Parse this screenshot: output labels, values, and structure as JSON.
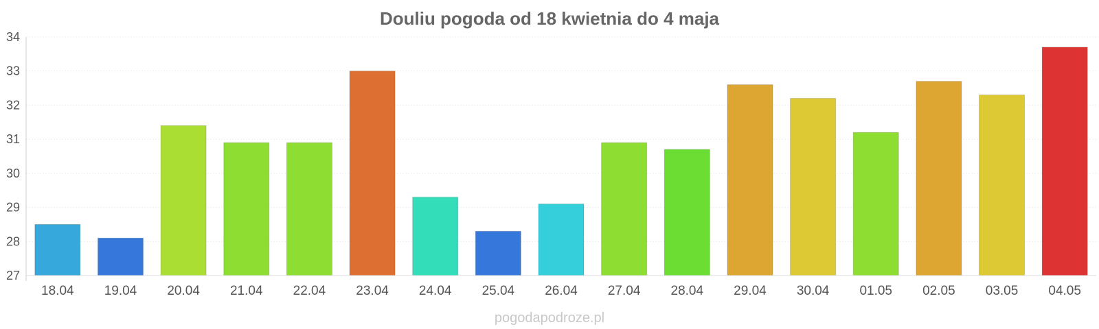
{
  "chart_data": {
    "type": "bar",
    "title": "Douliu pogoda od 18 kwietnia do 4 maja",
    "xlabel": "",
    "ylabel": "",
    "ylim": [
      27,
      34
    ],
    "yticks": [
      "27",
      "28",
      "29",
      "30",
      "31",
      "32",
      "33",
      "34"
    ],
    "grid": true,
    "categories": [
      "18.04",
      "19.04",
      "20.04",
      "21.04",
      "22.04",
      "23.04",
      "24.04",
      "25.04",
      "26.04",
      "27.04",
      "28.04",
      "29.04",
      "30.04",
      "01.05",
      "02.05",
      "03.05",
      "04.05"
    ],
    "values": [
      28.5,
      28.1,
      31.4,
      30.9,
      30.9,
      33.0,
      29.3,
      28.3,
      29.1,
      30.9,
      30.7,
      32.6,
      32.2,
      31.2,
      32.7,
      32.3,
      33.7
    ],
    "colors": [
      "#37A8DB",
      "#3577DB",
      "#AADE33",
      "#8EDD33",
      "#8EDD33",
      "#DE6F33",
      "#33DDBA",
      "#3577DB",
      "#35CFDB",
      "#8EDD33",
      "#6CDD33",
      "#DDA633",
      "#DDC933",
      "#8EDD33",
      "#DDA633",
      "#DDC933",
      "#DD3333"
    ]
  },
  "footer": {
    "watermark": "pogodapodroze.pl"
  }
}
